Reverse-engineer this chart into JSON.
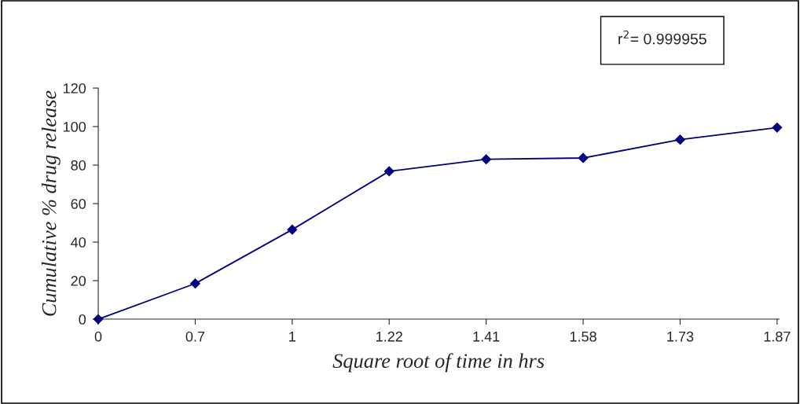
{
  "chart_data": {
    "type": "line",
    "xlabel": "Square root of time in hrs",
    "ylabel": "Cumulative % drug release",
    "categories": [
      "0",
      "0.7",
      "1",
      "1.22",
      "1.41",
      "1.58",
      "1.73",
      "1.87"
    ],
    "series": [
      {
        "color": "#000080",
        "values": [
          0,
          18.5,
          46.5,
          76.8,
          83.0,
          83.7,
          93.2,
          99.5
        ]
      }
    ],
    "ylim": [
      0,
      120
    ],
    "yticks": [
      0,
      20,
      40,
      60,
      80,
      100,
      120
    ],
    "marker": "diamond",
    "line_style": "solid",
    "grid": false,
    "legend": false,
    "annotations": [
      "r$^{2}$= 0.999955"
    ]
  }
}
